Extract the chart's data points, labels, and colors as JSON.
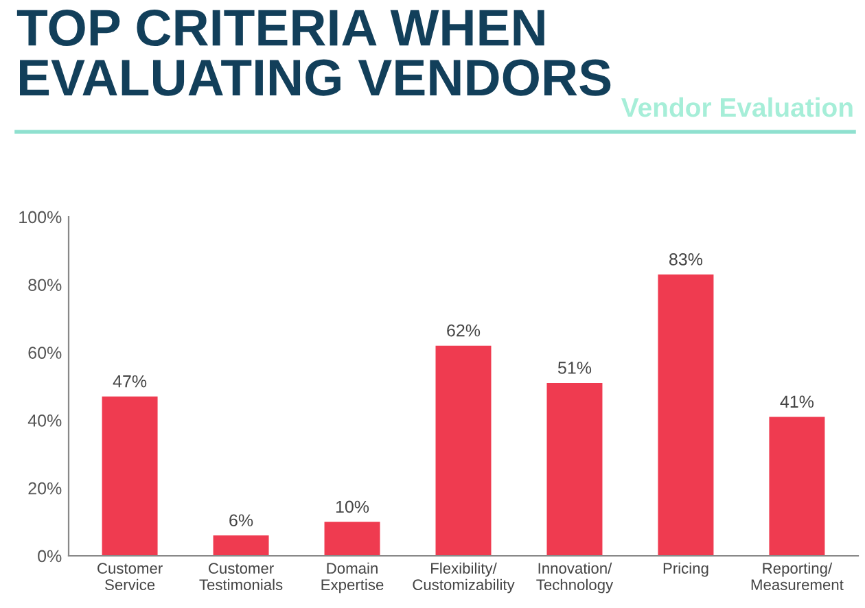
{
  "chart_data": {
    "type": "bar",
    "title": "TOP CRITERIA WHEN\nEVALUATING VENDORS",
    "subtitle": "Vendor Evaluation",
    "categories": [
      "Customer\nService",
      "Customer\nTestimonials",
      "Domain\nExpertise",
      "Flexibility/\nCustomizability",
      "Innovation/\nTechnology",
      "Pricing",
      "Reporting/\nMeasurement"
    ],
    "values": [
      47,
      6,
      10,
      62,
      51,
      83,
      41
    ],
    "value_labels": [
      "47%",
      "6%",
      "10%",
      "62%",
      "51%",
      "83%",
      "41%"
    ],
    "color": "#ef3b50",
    "ylim": [
      0,
      100
    ],
    "yticks": [
      {
        "value": 0,
        "label": "0%"
      },
      {
        "value": 20,
        "label": "20%"
      },
      {
        "value": 40,
        "label": "40%"
      },
      {
        "value": 60,
        "label": "60%"
      },
      {
        "value": 80,
        "label": "80%"
      },
      {
        "value": 100,
        "label": "100%"
      }
    ],
    "grid": false
  }
}
